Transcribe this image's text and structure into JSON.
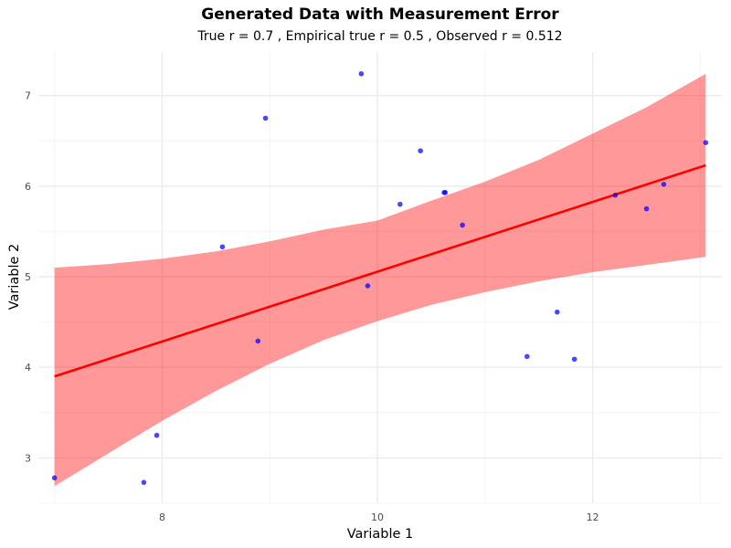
{
  "chart_data": {
    "type": "scatter",
    "title": "Generated Data with Measurement Error",
    "subtitle": "True r = 0.7 , Empirical true r = 0.5 , Observed r = 0.512",
    "xlabel": "Variable 1",
    "ylabel": "Variable 2",
    "xlim": [
      6.85,
      13.2
    ],
    "ylim": [
      2.5,
      7.48
    ],
    "x_ticks": [
      8,
      10,
      12
    ],
    "y_ticks": [
      3,
      4,
      5,
      6,
      7
    ],
    "x_ticks_minor": [
      7,
      9,
      11,
      13
    ],
    "y_ticks_minor": [
      2.5,
      3.5,
      4.5,
      5.5,
      6.5
    ],
    "grid": true,
    "points": [
      {
        "x": 7.0,
        "y": 2.78
      },
      {
        "x": 7.83,
        "y": 2.73
      },
      {
        "x": 7.95,
        "y": 3.25
      },
      {
        "x": 8.56,
        "y": 5.33
      },
      {
        "x": 8.89,
        "y": 4.29
      },
      {
        "x": 8.96,
        "y": 6.75
      },
      {
        "x": 9.85,
        "y": 7.24
      },
      {
        "x": 9.91,
        "y": 4.9
      },
      {
        "x": 10.21,
        "y": 5.8
      },
      {
        "x": 10.4,
        "y": 6.39
      },
      {
        "x": 10.62,
        "y": 5.93
      },
      {
        "x": 10.63,
        "y": 5.93
      },
      {
        "x": 10.79,
        "y": 5.57
      },
      {
        "x": 11.39,
        "y": 4.12
      },
      {
        "x": 11.67,
        "y": 4.61
      },
      {
        "x": 11.83,
        "y": 4.09
      },
      {
        "x": 12.21,
        "y": 5.9
      },
      {
        "x": 12.5,
        "y": 5.75
      },
      {
        "x": 12.66,
        "y": 6.02
      },
      {
        "x": 13.05,
        "y": 6.48
      }
    ],
    "fit_line": {
      "x0": 7.0,
      "y0": 3.9,
      "x1": 13.05,
      "y1": 6.23
    },
    "confidence_band": {
      "x": [
        7.0,
        7.5,
        8.0,
        8.5,
        9.0,
        9.5,
        10.0,
        10.5,
        11.0,
        11.5,
        12.0,
        12.5,
        13.05
      ],
      "lower": [
        2.69,
        3.05,
        3.41,
        3.74,
        4.04,
        4.3,
        4.51,
        4.69,
        4.83,
        4.95,
        5.05,
        5.13,
        5.22
      ],
      "upper": [
        5.1,
        5.14,
        5.2,
        5.28,
        5.39,
        5.52,
        5.62,
        5.84,
        6.05,
        6.29,
        6.58,
        6.87,
        7.24
      ]
    },
    "colors": {
      "points": "#0000ff",
      "fit_line": "#ff0000",
      "band": "#ff0000",
      "grid_major": "#ebebeb",
      "grid_minor": "#f4f4f4"
    }
  }
}
